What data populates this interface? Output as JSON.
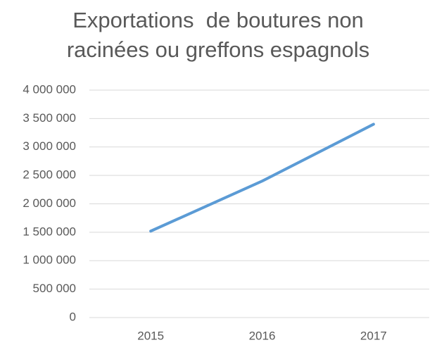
{
  "chart_data": {
    "type": "line",
    "title": "Exportations  de boutures non racinées ou greffons espagnols",
    "categories": [
      "2015",
      "2016",
      "2017"
    ],
    "series": [
      {
        "name": "Exportations",
        "color": "#5b9bd5",
        "values": [
          1520000,
          2400000,
          3400000
        ]
      }
    ],
    "ylim": [
      0,
      4000000
    ],
    "yticks": [
      0,
      {
        "value": 500000,
        "label": "500 000"
      },
      {
        "value": 1000000,
        "label": "1 000 000"
      },
      {
        "value": 1500000,
        "label": "1 500 000"
      },
      {
        "value": 2000000,
        "label": "2 000 000"
      },
      {
        "value": 2500000,
        "label": "2 500 000"
      },
      {
        "value": 3000000,
        "label": "3 000 000"
      },
      {
        "value": 3500000,
        "label": "3 500 000"
      },
      {
        "value": 4000000,
        "label": "4 000 000"
      }
    ],
    "grid": true
  }
}
